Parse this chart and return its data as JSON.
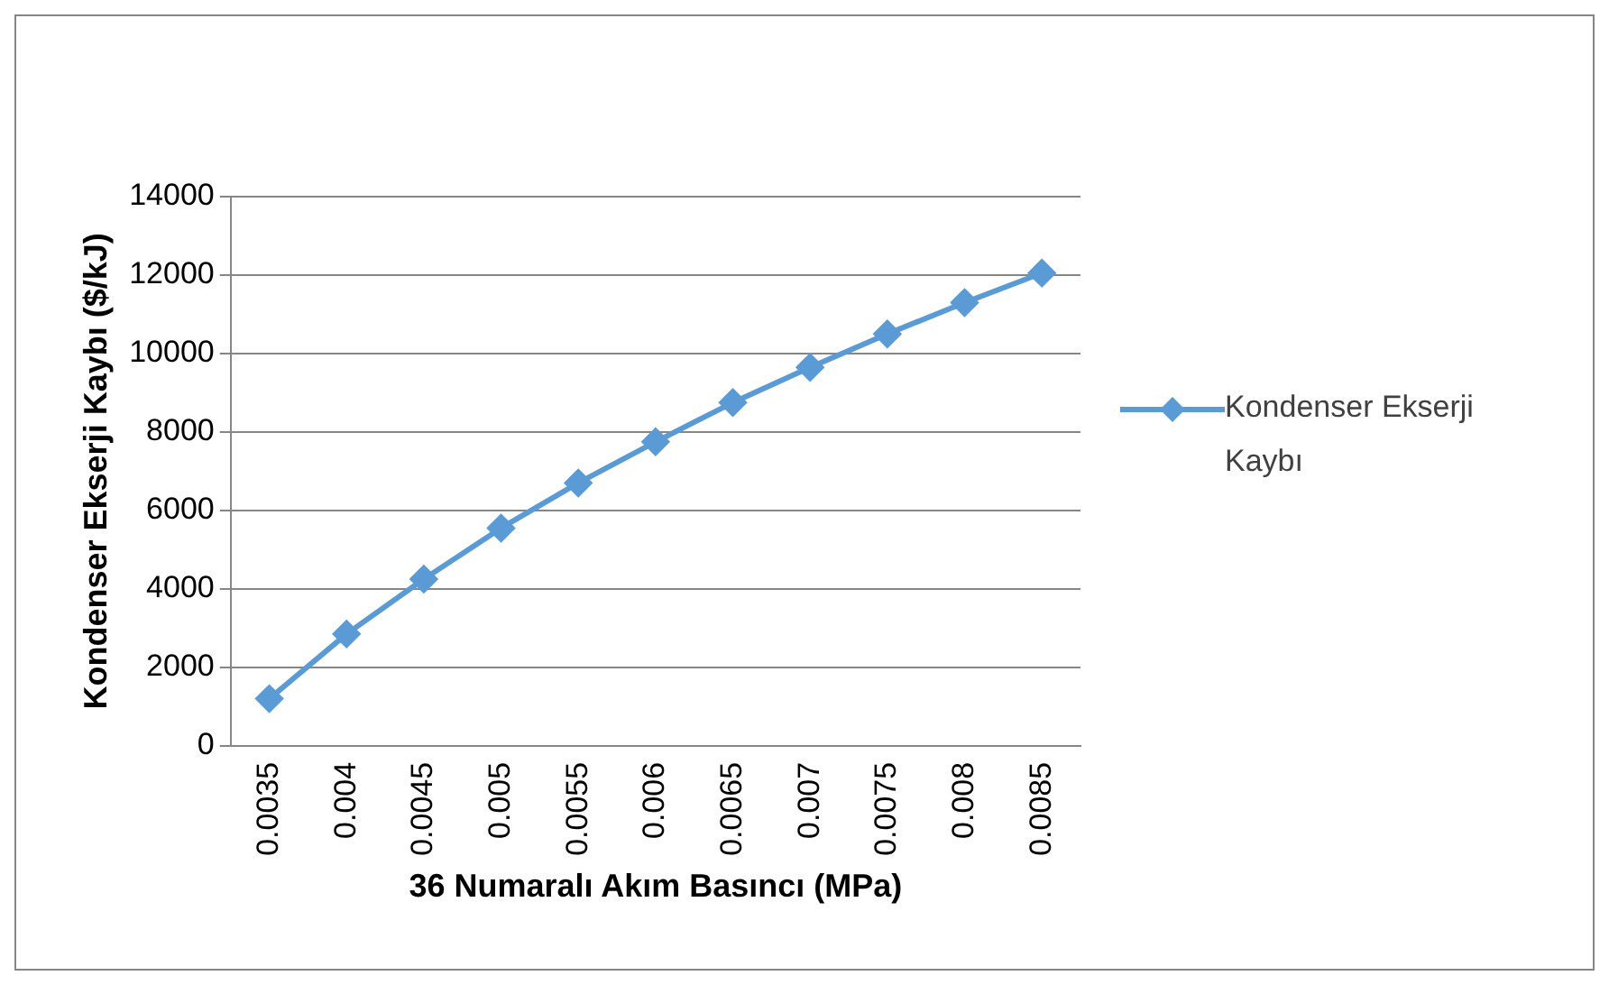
{
  "chart_data": {
    "type": "line",
    "xlabel": "36 Numaralı Akım Basıncı (MPa)",
    "ylabel": "Kondenser Ekserji Kaybı ($/kJ)",
    "categories": [
      "0.0035",
      "0.004",
      "0.0045",
      "0.005",
      "0.0055",
      "0.006",
      "0.0065",
      "0.007",
      "0.0075",
      "0.008",
      "0.0085"
    ],
    "series": [
      {
        "name": "Kondenser Ekserji Kaybı",
        "color": "#5b9bd5",
        "values": [
          1200,
          2850,
          4250,
          5550,
          6700,
          7750,
          8750,
          9650,
          10500,
          11300,
          12050
        ]
      }
    ],
    "ylim": [
      0,
      14000
    ],
    "yticks": [
      0,
      2000,
      4000,
      6000,
      8000,
      10000,
      12000,
      14000
    ],
    "grid": "y",
    "legend": "right",
    "marker": "diamond",
    "line_style": "solid"
  }
}
